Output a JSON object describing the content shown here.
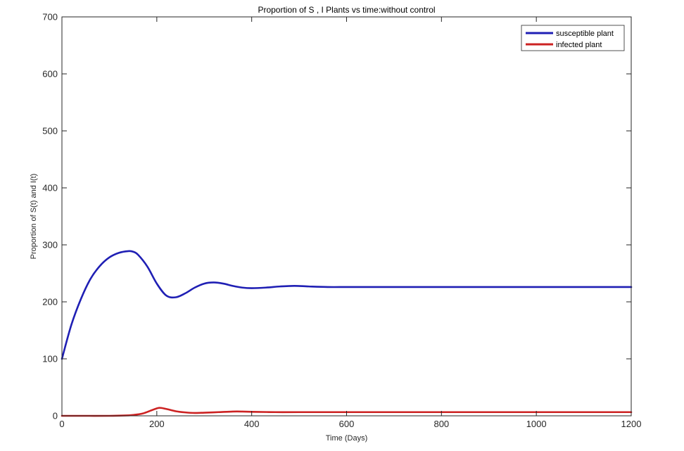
{
  "chart_data": {
    "type": "line",
    "title": "Proportion of S , I Plants vs time:without control",
    "xlabel": "Time (Days)",
    "ylabel": "Proportion of S(t) and I(t)",
    "xlim": [
      0,
      1200
    ],
    "ylim": [
      0,
      700
    ],
    "xticks": [
      0,
      200,
      400,
      600,
      800,
      1000,
      1200
    ],
    "yticks": [
      0,
      100,
      200,
      300,
      400,
      500,
      600,
      700
    ],
    "grid": false,
    "legend_position": "top-right",
    "series": [
      {
        "name": "susceptible plant",
        "color": "#1f1fb4",
        "x": [
          0,
          20,
          40,
          60,
          80,
          100,
          120,
          140,
          150,
          160,
          180,
          200,
          220,
          240,
          260,
          280,
          300,
          320,
          340,
          360,
          380,
          400,
          430,
          460,
          490,
          520,
          560,
          600,
          650,
          700,
          800,
          900,
          1000,
          1100,
          1200
        ],
        "y": [
          100,
          160,
          205,
          240,
          263,
          278,
          286,
          289,
          288,
          283,
          262,
          232,
          211,
          208,
          215,
          225,
          232,
          234,
          232,
          228,
          225,
          224,
          225,
          227,
          228,
          227,
          226,
          226,
          226,
          226,
          226,
          226,
          226,
          226,
          226
        ]
      },
      {
        "name": "infected plant",
        "color": "#cc2222",
        "x": [
          0,
          50,
          100,
          130,
          150,
          170,
          190,
          205,
          220,
          240,
          260,
          280,
          300,
          330,
          360,
          380,
          400,
          450,
          500,
          600,
          700,
          800,
          900,
          1000,
          1100,
          1200
        ],
        "y": [
          0,
          0,
          0,
          0.5,
          1.5,
          4,
          10,
          14,
          12,
          8,
          6,
          5,
          5.5,
          6.5,
          7.5,
          7.5,
          7,
          6.5,
          6.5,
          6.5,
          6.5,
          6.5,
          6.5,
          6.5,
          6.5,
          6.5
        ]
      }
    ]
  }
}
